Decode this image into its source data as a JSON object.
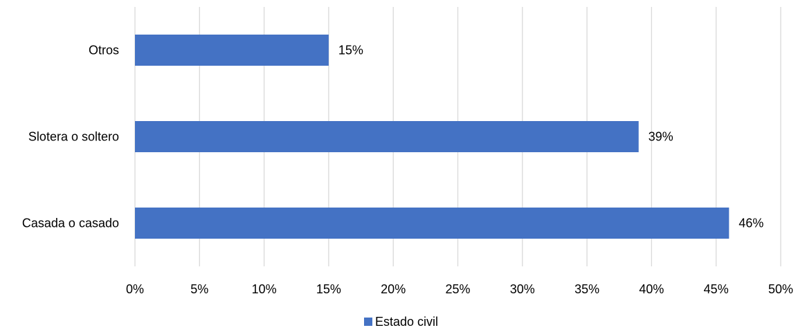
{
  "chart_data": {
    "type": "bar",
    "orientation": "horizontal",
    "categories": [
      "Casada o casado",
      "Slotera o soltero",
      "Otros"
    ],
    "series": [
      {
        "name": "Estado civil",
        "values": [
          46,
          39,
          15
        ],
        "data_labels": [
          "46%",
          "39%",
          "15%"
        ],
        "color": "#4472C4"
      }
    ],
    "xlim": [
      0,
      50
    ],
    "x_ticks": [
      0,
      5,
      10,
      15,
      20,
      25,
      30,
      35,
      40,
      45,
      50
    ],
    "x_tick_labels": [
      "0%",
      "5%",
      "10%",
      "15%",
      "20%",
      "25%",
      "30%",
      "35%",
      "40%",
      "45%",
      "50%"
    ],
    "grid": "vertical",
    "grid_color": "#D9D9D9",
    "legend_placement": "bottom-center"
  }
}
